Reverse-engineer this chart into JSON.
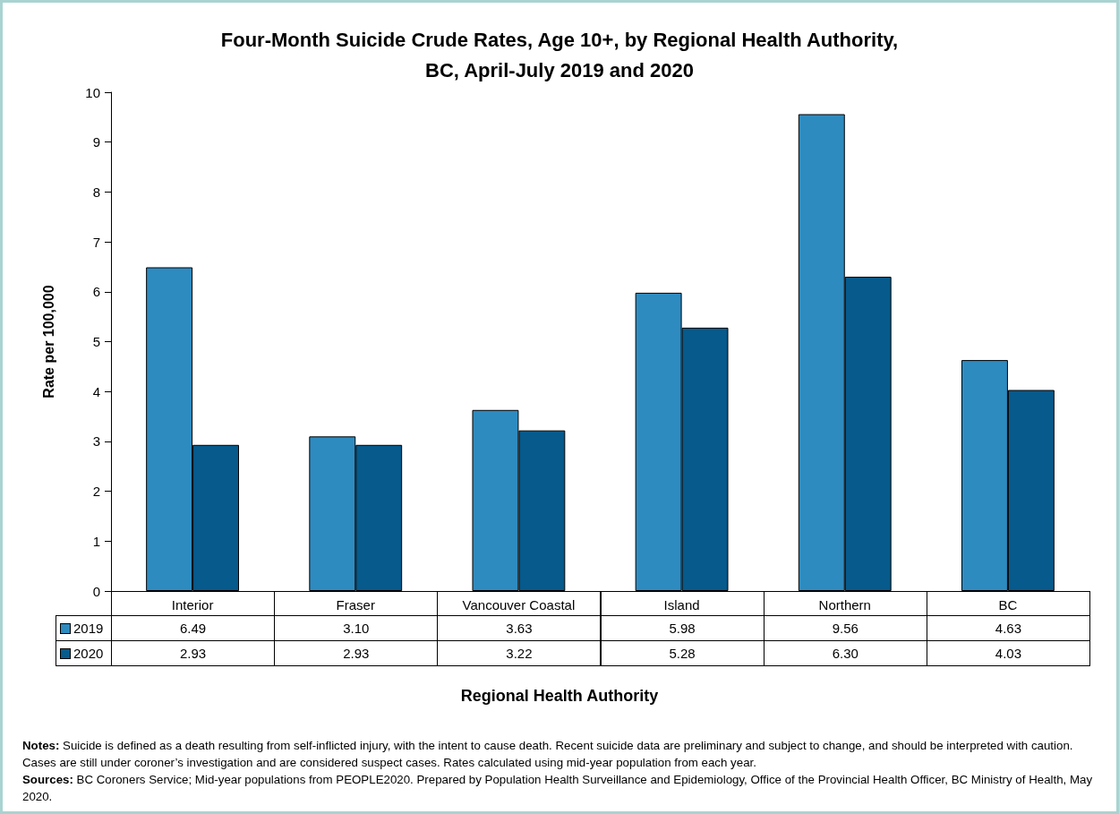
{
  "chart_data": {
    "type": "bar",
    "title": "Four-Month Suicide Crude Rates, Age 10+, by Regional Health Authority,\nBC, April-July 2019 and 2020",
    "xlabel": "Regional Health Authority",
    "ylabel": "Rate per 100,000",
    "categories": [
      "Interior",
      "Fraser",
      "Vancouver Coastal",
      "Island",
      "Northern",
      "BC"
    ],
    "series": [
      {
        "name": "2019",
        "color": "#2e8bc0",
        "values": [
          6.49,
          3.1,
          3.63,
          5.98,
          9.56,
          4.63
        ],
        "value_labels": [
          "6.49",
          "3.10",
          "3.63",
          "5.98",
          "9.56",
          "4.63"
        ]
      },
      {
        "name": "2020",
        "color": "#065a8c",
        "values": [
          2.93,
          2.93,
          3.22,
          5.28,
          6.3,
          4.03
        ],
        "value_labels": [
          "2.93",
          "2.93",
          "3.22",
          "5.28",
          "6.30",
          "4.03"
        ]
      }
    ],
    "ylim": [
      0,
      10
    ],
    "yticks": [
      0,
      1,
      2,
      3,
      4,
      5,
      6,
      7,
      8,
      9,
      10
    ],
    "grid": false,
    "legend": "bottom",
    "annotations": [
      "Notes: Suicide is defined as a death resulting from self-inflicted injury, with the intent to cause death. Recent suicide data are preliminary and subject to change, and should be interpreted with caution. Cases are still under coroner’s investigation and are considered suspect cases. Rates calculated using mid-year population from each year.",
      "Sources: BC Coroners Service; Mid-year populations from PEOPLE2020. Prepared by Population Health Surveillance and Epidemiology, Office of the Provincial Health Officer, BC Ministry of Health, May 2020."
    ]
  }
}
